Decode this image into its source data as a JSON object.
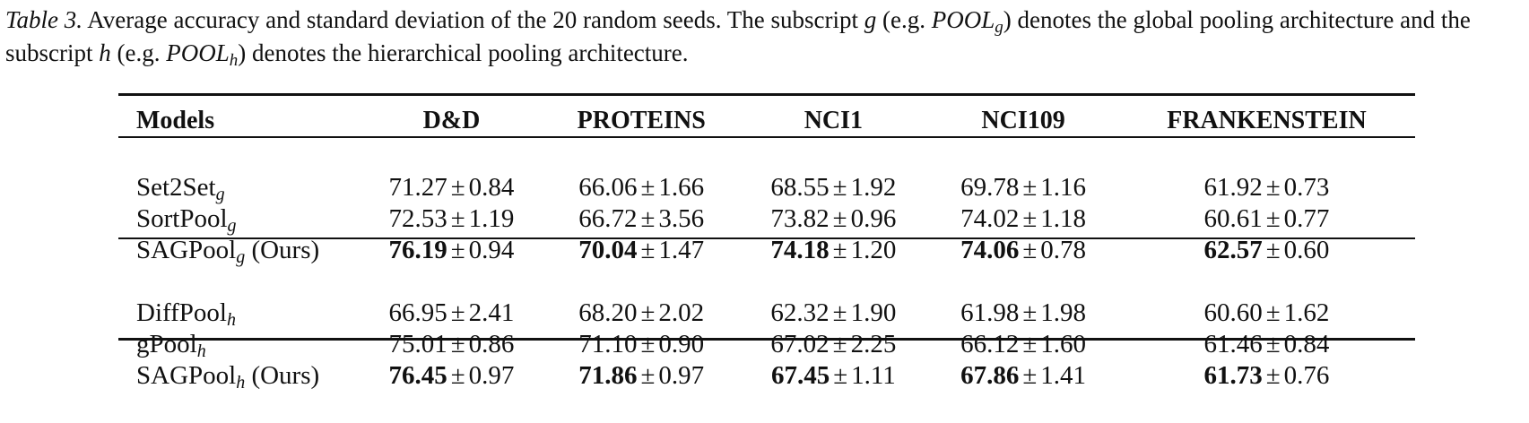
{
  "caption": {
    "label": "Table 3.",
    "text_1": " Average accuracy and standard deviation of the 20 random seeds. The subscript ",
    "g": "g",
    "text_2": " (e.g. ",
    "pool": "POOL",
    "text_3": ") denotes the global pooling architecture and the subscript ",
    "h": "h",
    "text_4": " (e.g. ",
    "text_5": ") denotes the hierarchical pooling architecture."
  },
  "table": {
    "pm": "±",
    "headers": [
      "Models",
      "D&D",
      "PROTEINS",
      "NCI1",
      "NCI109",
      "FRANKENSTEIN"
    ],
    "groups": [
      {
        "rows": [
          {
            "model": "Set2Set",
            "sub": "g",
            "suffix": "",
            "cells": [
              {
                "mean": "71.27",
                "std": "0.84",
                "bold": false
              },
              {
                "mean": "66.06",
                "std": "1.66",
                "bold": false
              },
              {
                "mean": "68.55",
                "std": "1.92",
                "bold": false
              },
              {
                "mean": "69.78",
                "std": "1.16",
                "bold": false
              },
              {
                "mean": "61.92",
                "std": "0.73",
                "bold": false
              }
            ]
          },
          {
            "model": "SortPool",
            "sub": "g",
            "suffix": "",
            "cells": [
              {
                "mean": "72.53",
                "std": "1.19",
                "bold": false
              },
              {
                "mean": "66.72",
                "std": "3.56",
                "bold": false
              },
              {
                "mean": "73.82",
                "std": "0.96",
                "bold": false
              },
              {
                "mean": "74.02",
                "std": "1.18",
                "bold": false
              },
              {
                "mean": "60.61",
                "std": "0.77",
                "bold": false
              }
            ]
          },
          {
            "model": "SAGPool",
            "sub": "g",
            "suffix": " (Ours)",
            "cells": [
              {
                "mean": "76.19",
                "std": "0.94",
                "bold": true
              },
              {
                "mean": "70.04",
                "std": "1.47",
                "bold": true
              },
              {
                "mean": "74.18",
                "std": "1.20",
                "bold": true
              },
              {
                "mean": "74.06",
                "std": "0.78",
                "bold": true
              },
              {
                "mean": "62.57",
                "std": "0.60",
                "bold": true
              }
            ]
          }
        ]
      },
      {
        "rows": [
          {
            "model": "DiffPool",
            "sub": "h",
            "suffix": "",
            "cells": [
              {
                "mean": "66.95",
                "std": "2.41",
                "bold": false
              },
              {
                "mean": "68.20",
                "std": "2.02",
                "bold": false
              },
              {
                "mean": "62.32",
                "std": "1.90",
                "bold": false
              },
              {
                "mean": "61.98",
                "std": "1.98",
                "bold": false
              },
              {
                "mean": "60.60",
                "std": "1.62",
                "bold": false
              }
            ]
          },
          {
            "model": "gPool",
            "sub": "h",
            "suffix": "",
            "cells": [
              {
                "mean": "75.01",
                "std": "0.86",
                "bold": false
              },
              {
                "mean": "71.10",
                "std": "0.90",
                "bold": false
              },
              {
                "mean": "67.02",
                "std": "2.25",
                "bold": false
              },
              {
                "mean": "66.12",
                "std": "1.60",
                "bold": false
              },
              {
                "mean": "61.46",
                "std": "0.84",
                "bold": false
              }
            ]
          },
          {
            "model": "SAGPool",
            "sub": "h",
            "suffix": " (Ours)",
            "cells": [
              {
                "mean": "76.45",
                "std": "0.97",
                "bold": true
              },
              {
                "mean": "71.86",
                "std": "0.97",
                "bold": true
              },
              {
                "mean": "67.45",
                "std": "1.11",
                "bold": true
              },
              {
                "mean": "67.86",
                "std": "1.41",
                "bold": true
              },
              {
                "mean": "61.73",
                "std": "0.76",
                "bold": true
              }
            ]
          }
        ]
      }
    ]
  }
}
